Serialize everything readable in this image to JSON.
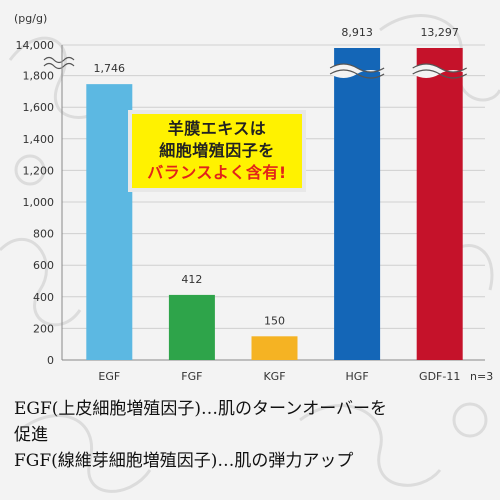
{
  "chart_data": {
    "type": "bar",
    "unit_label": "(pg/g)",
    "categories": [
      "EGF",
      "FGF",
      "KGF",
      "HGF",
      "GDF-11"
    ],
    "values": [
      1746,
      412,
      150,
      8913,
      13297
    ],
    "value_labels": [
      "1,746",
      "412",
      "150",
      "8,913",
      "13,297"
    ],
    "colors": [
      "#5cb8e2",
      "#2ea44a",
      "#f5b323",
      "#1466b7",
      "#c5122a"
    ],
    "axis_break": true,
    "ylim": [
      0,
      2000
    ],
    "ytick_values": [
      0,
      200,
      400,
      600,
      800,
      1000,
      1200,
      1400,
      1600,
      1800
    ],
    "ytick_labels": [
      "0",
      "200",
      "400",
      "600",
      "800",
      "1,000",
      "1,200",
      "1,400",
      "1,600",
      "1,800"
    ],
    "top_tick_label": "14,000",
    "note": "n=3",
    "grid": true
  },
  "callout": {
    "line1": "羊膜エキスは",
    "line2": "細胞増殖因子を",
    "line3": "バランスよく含有!"
  },
  "captions": {
    "line1": "EGF(上皮細胞増殖因子)…肌のターンオーバーを",
    "line2": "促進",
    "line3": "FGF(線維芽細胞増殖因子)…肌の弾力アップ"
  }
}
